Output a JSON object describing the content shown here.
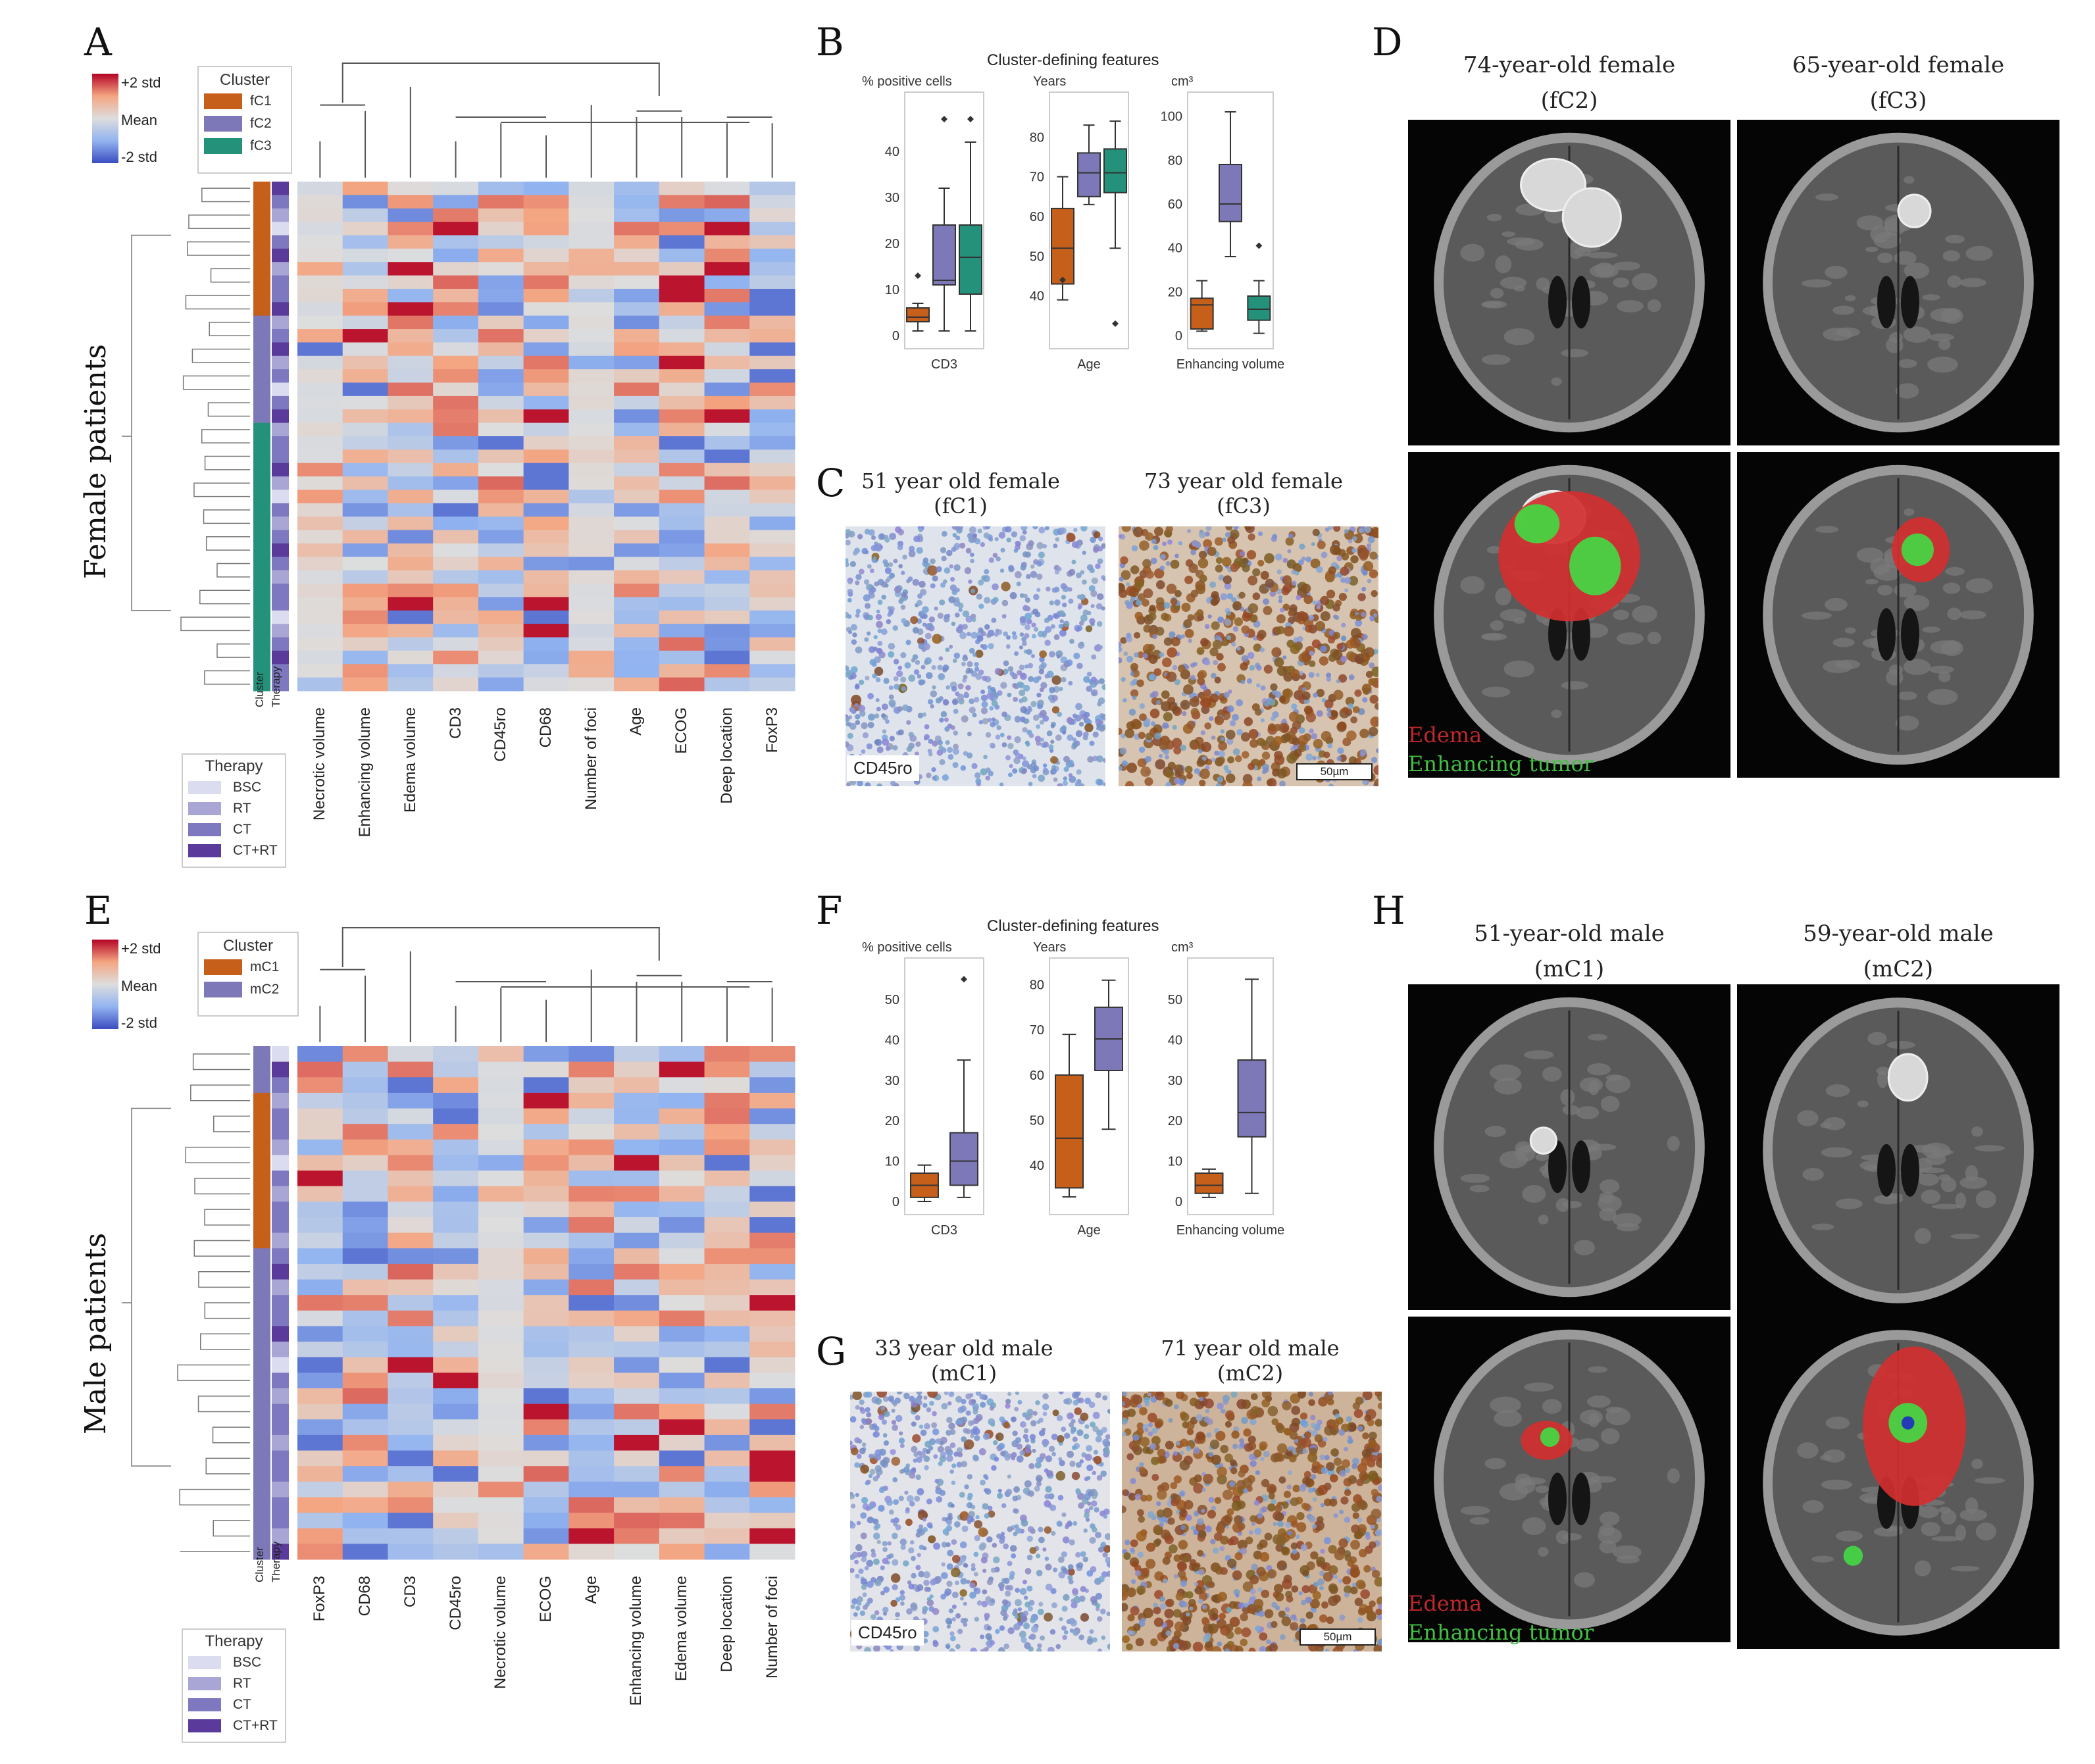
{
  "colors": {
    "fC1": "#c65f1a",
    "fC2": "#7d79b8",
    "fC3": "#24917a",
    "bsc": "#dcdcf0",
    "rt": "#a9a6d6",
    "ct": "#7e78c0",
    "ctrt": "#5a3a9a",
    "edema": "#d32f2f",
    "enhancing": "#43d843",
    "core": "#2030c0"
  },
  "panels": {
    "A": "A",
    "B": "B",
    "C": "C",
    "D": "D",
    "E": "E",
    "F": "F",
    "G": "G",
    "H": "H"
  },
  "heatA": {
    "side_label": "Female patients",
    "scale": {
      "hi": "+2 std",
      "mid": "Mean",
      "lo": "-2 std"
    },
    "cluster_title": "Cluster",
    "clusters": [
      {
        "label": "fC1",
        "color": "#c65f1a"
      },
      {
        "label": "fC2",
        "color": "#7d79b8"
      },
      {
        "label": "fC3",
        "color": "#24917a"
      }
    ],
    "therapy_title": "Therapy",
    "therapies": [
      {
        "label": "BSC",
        "color": "#dcdcf0"
      },
      {
        "label": "RT",
        "color": "#a9a6d6"
      },
      {
        "label": "CT",
        "color": "#7e78c0"
      },
      {
        "label": "CT+RT",
        "color": "#5a3a9a"
      }
    ],
    "strip_labels": [
      "Cluster",
      "Therapy"
    ],
    "columns": [
      "Necrotic volume",
      "Enhancing volume",
      "Edema volume",
      "CD3",
      "CD45ro",
      "CD68",
      "Number of foci",
      "Age",
      "ECOG",
      "Deep location",
      "FoxP3"
    ],
    "row_clusters": [
      0,
      0,
      0,
      0,
      0,
      0,
      0,
      0,
      0,
      0,
      1,
      1,
      1,
      1,
      1,
      1,
      1,
      1,
      2,
      2,
      2,
      2,
      2,
      2,
      2,
      2,
      2,
      2,
      2,
      2,
      2,
      2,
      2,
      2,
      2,
      2,
      2,
      2
    ],
    "row_therapy": [
      3,
      2,
      1,
      0,
      2,
      3,
      1,
      2,
      2,
      3,
      1,
      2,
      3,
      1,
      2,
      0,
      2,
      3,
      1,
      2,
      2,
      3,
      1,
      0,
      2,
      1,
      2,
      3,
      2,
      1,
      2,
      2,
      0,
      1,
      2,
      3,
      2,
      2
    ],
    "matrix_seed": 11
  },
  "heatE": {
    "side_label": "Male patients",
    "scale": {
      "hi": "+2 std",
      "mid": "Mean",
      "lo": "-2 std"
    },
    "cluster_title": "Cluster",
    "clusters": [
      {
        "label": "mC1",
        "color": "#c65f1a"
      },
      {
        "label": "mC2",
        "color": "#7d79b8"
      }
    ],
    "therapy_title": "Therapy",
    "therapies": [
      {
        "label": "BSC",
        "color": "#dcdcf0"
      },
      {
        "label": "RT",
        "color": "#a9a6d6"
      },
      {
        "label": "CT",
        "color": "#7e78c0"
      },
      {
        "label": "CT+RT",
        "color": "#5a3a9a"
      }
    ],
    "strip_labels": [
      "Cluster",
      "Therapy"
    ],
    "columns": [
      "FoxP3",
      "CD68",
      "CD3",
      "CD45ro",
      "Necrotic volume",
      "ECOG",
      "Age",
      "Enhancing volume",
      "Edema volume",
      "Deep location",
      "Number of foci"
    ],
    "row_clusters": [
      1,
      1,
      1,
      0,
      0,
      0,
      0,
      0,
      0,
      0,
      0,
      0,
      0,
      1,
      1,
      1,
      1,
      1,
      1,
      1,
      1,
      1,
      1,
      1,
      1,
      1,
      1,
      1,
      1,
      1,
      1,
      1,
      1
    ],
    "row_therapy": [
      0,
      3,
      2,
      1,
      2,
      2,
      1,
      0,
      2,
      1,
      2,
      2,
      1,
      2,
      3,
      1,
      2,
      2,
      3,
      1,
      0,
      2,
      1,
      2,
      2,
      1,
      2,
      2,
      1,
      2,
      2,
      1,
      3
    ],
    "matrix_seed": 29
  },
  "boxB": {
    "title": "Cluster-defining features",
    "units": [
      "% positive cells",
      "Years",
      "cm³"
    ],
    "xlabels": [
      "CD3",
      "Age",
      "Enhancing volume"
    ],
    "chart_data": [
      {
        "type": "box",
        "variable": "CD3",
        "ylabel": "% positive cells",
        "ylim": [
          0,
          50
        ],
        "ticks": [
          0,
          10,
          20,
          30,
          40
        ],
        "groups": [
          {
            "cluster": "fC1",
            "min": 1,
            "q1": 3,
            "median": 4,
            "q3": 6,
            "max": 7,
            "outliers": [
              13
            ]
          },
          {
            "cluster": "fC2",
            "min": 1,
            "q1": 11,
            "median": 12,
            "q3": 24,
            "max": 32,
            "outliers": [
              47
            ]
          },
          {
            "cluster": "fC3",
            "min": 1,
            "q1": 9,
            "median": 17,
            "q3": 24,
            "max": 42,
            "outliers": [
              47
            ]
          }
        ]
      },
      {
        "type": "box",
        "variable": "Age",
        "ylabel": "Years",
        "ylim": [
          30,
          88
        ],
        "ticks": [
          40,
          50,
          60,
          70,
          80
        ],
        "groups": [
          {
            "cluster": "fC1",
            "min": 39,
            "q1": 43,
            "median": 52,
            "q3": 62,
            "max": 70,
            "outliers": [
              44
            ]
          },
          {
            "cluster": "fC2",
            "min": 63,
            "q1": 65,
            "median": 71,
            "q3": 76,
            "max": 83,
            "outliers": []
          },
          {
            "cluster": "fC3",
            "min": 52,
            "q1": 66,
            "median": 71,
            "q3": 77,
            "max": 84,
            "outliers": [
              33
            ]
          }
        ]
      },
      {
        "type": "box",
        "variable": "Enhancing volume",
        "ylabel": "cm³",
        "ylim": [
          0,
          105
        ],
        "ticks": [
          0,
          20,
          40,
          60,
          80,
          100
        ],
        "groups": [
          {
            "cluster": "fC1",
            "min": 2,
            "q1": 3,
            "median": 14,
            "q3": 17,
            "max": 25,
            "outliers": []
          },
          {
            "cluster": "fC2",
            "min": 36,
            "q1": 52,
            "median": 60,
            "q3": 78,
            "max": 102,
            "outliers": []
          },
          {
            "cluster": "fC3",
            "min": 1,
            "q1": 7,
            "median": 12,
            "q3": 18,
            "max": 25,
            "outliers": [
              41
            ]
          }
        ]
      }
    ]
  },
  "boxF": {
    "title": "Cluster-defining features",
    "units": [
      "% positive cells",
      "Years",
      "cm³"
    ],
    "xlabels": [
      "CD3",
      "Age",
      "Enhancing volume"
    ],
    "chart_data": [
      {
        "type": "box",
        "variable": "CD3",
        "ylabel": "% positive cells",
        "ylim": [
          0,
          57
        ],
        "ticks": [
          0,
          10,
          20,
          30,
          40,
          50
        ],
        "groups": [
          {
            "cluster": "mC1",
            "min": 0,
            "q1": 1,
            "median": 4,
            "q3": 7,
            "max": 9,
            "outliers": []
          },
          {
            "cluster": "mC2",
            "min": 1,
            "q1": 4,
            "median": 10,
            "q3": 17,
            "max": 35,
            "outliers": [
              55
            ]
          }
        ]
      },
      {
        "type": "box",
        "variable": "Age",
        "ylabel": "Years",
        "ylim": [
          32,
          83
        ],
        "ticks": [
          40,
          50,
          60,
          70,
          80
        ],
        "groups": [
          {
            "cluster": "mC1",
            "min": 33,
            "q1": 35,
            "median": 46,
            "q3": 60,
            "max": 69,
            "outliers": []
          },
          {
            "cluster": "mC2",
            "min": 48,
            "q1": 61,
            "median": 68,
            "q3": 75,
            "max": 81,
            "outliers": []
          }
        ]
      },
      {
        "type": "box",
        "variable": "Enhancing volume",
        "ylabel": "cm³",
        "ylim": [
          0,
          57
        ],
        "ticks": [
          0,
          10,
          20,
          30,
          40,
          50
        ],
        "groups": [
          {
            "cluster": "mC1",
            "min": 1,
            "q1": 2,
            "median": 4,
            "q3": 7,
            "max": 8,
            "outliers": []
          },
          {
            "cluster": "mC2",
            "min": 2,
            "q1": 16,
            "median": 22,
            "q3": 35,
            "max": 55,
            "outliers": []
          }
        ]
      }
    ]
  },
  "microC": {
    "left_title": "51 year old female",
    "left_sub": "(fC1)",
    "right_title": "73 year old female",
    "right_sub": "(fC3)",
    "stain": "CD45ro",
    "scale": "50µm"
  },
  "microG": {
    "left_title": "33 year old male",
    "left_sub": "(mC1)",
    "right_title": "71 year old male",
    "right_sub": "(mC2)",
    "stain": "CD45ro",
    "scale": "50µm"
  },
  "mriD": {
    "left_title": "74-year-old female",
    "left_sub": "(fC2)",
    "right_title": "65-year-old female",
    "right_sub": "(fC3)",
    "legend_edema": "Edema",
    "legend_enh": "Enhancing tumor"
  },
  "mriH": {
    "left_title": "51-year-old male",
    "left_sub": "(mC1)",
    "right_title": "59-year-old male",
    "right_sub": "(mC2)",
    "legend_edema": "Edema",
    "legend_enh": "Enhancing tumor"
  }
}
